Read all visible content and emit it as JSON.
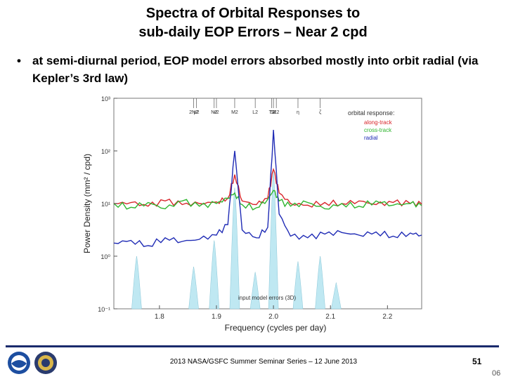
{
  "slide": {
    "title_line1": "Spectra of Orbital Responses to",
    "title_line2": "sub-daily EOP Errors – Near 2 cpd",
    "bullet_symbol": "•",
    "bullet_text": "at semi-diurnal period, EOP model errors absorbed mostly into orbit radial (via Kepler’s 3rd law)",
    "footer": "2013 NASA/GSFC Summer Seminar Series – 12 June 2013",
    "page_number": "51",
    "page_sub": "06"
  },
  "chart_data": {
    "type": "line",
    "ylabel": "Power Density (mm² / cpd)",
    "xlabel": "Frequency (cycles per day)",
    "xlim": [
      1.72,
      2.26
    ],
    "ylim_log10": [
      -1,
      3
    ],
    "x_ticks": [
      1.8,
      1.9,
      2.0,
      2.1,
      2.2
    ],
    "x_tick_labels": [
      "1.8",
      "1.9",
      "2.0",
      "2.1",
      "2.2"
    ],
    "y_ticks_log10": [
      -1,
      0,
      1,
      2,
      3
    ],
    "y_tick_labels": [
      "10⁻¹",
      "10⁰",
      "10¹",
      "10²",
      "10³"
    ],
    "tide_lines": [
      {
        "label": "2N2",
        "x": 1.86
      },
      {
        "label": "μ2",
        "x": 1.865
      },
      {
        "label": "N2",
        "x": 1.896
      },
      {
        "label": "ν2",
        "x": 1.9
      },
      {
        "label": "M2",
        "x": 1.932
      },
      {
        "label": "L2",
        "x": 1.968
      },
      {
        "label": "T2",
        "x": 1.997
      },
      {
        "label": "S2",
        "x": 2.0
      },
      {
        "label": "K2",
        "x": 2.005
      },
      {
        "label": "η",
        "x": 2.043
      },
      {
        "label": "ζ",
        "x": 2.082
      }
    ],
    "legend_title": "orbital response:",
    "legend_position": "top-right",
    "series": [
      {
        "name": "along-track",
        "color": "#d8252b",
        "x": [
          1.72,
          1.75,
          1.78,
          1.81,
          1.84,
          1.87,
          1.9,
          1.92,
          1.932,
          1.945,
          1.97,
          1.99,
          2.0,
          2.01,
          2.03,
          2.06,
          2.09,
          2.12,
          2.15,
          2.18,
          2.21,
          2.24,
          2.26
        ],
        "y": [
          1.0,
          1.02,
          0.95,
          1.05,
          0.98,
          1.0,
          1.03,
          1.1,
          1.55,
          1.05,
          0.98,
          1.1,
          1.65,
          1.2,
          1.0,
          0.97,
          1.02,
          1.0,
          1.05,
          0.98,
          1.02,
          1.0,
          0.99
        ]
      },
      {
        "name": "cross-track",
        "color": "#2fb52f",
        "x": [
          1.72,
          1.75,
          1.78,
          1.81,
          1.84,
          1.87,
          1.9,
          1.92,
          1.932,
          1.945,
          1.97,
          1.99,
          2.0,
          2.01,
          2.03,
          2.06,
          2.09,
          2.12,
          2.15,
          2.18,
          2.21,
          2.24,
          2.26
        ],
        "y": [
          1.0,
          0.93,
          1.02,
          0.9,
          1.05,
          0.95,
          1.0,
          1.1,
          1.2,
          0.98,
          0.92,
          1.08,
          1.25,
          1.05,
          0.95,
          1.02,
          0.9,
          1.0,
          0.95,
          1.05,
          0.97,
          1.0,
          0.96
        ]
      },
      {
        "name": "radial",
        "color": "#1f2bb5",
        "x": [
          1.72,
          1.75,
          1.78,
          1.81,
          1.84,
          1.87,
          1.9,
          1.92,
          1.932,
          1.945,
          1.97,
          1.99,
          2.0,
          2.01,
          2.03,
          2.06,
          2.09,
          2.12,
          2.15,
          2.18,
          2.21,
          2.24,
          2.26
        ],
        "y": [
          0.25,
          0.3,
          0.2,
          0.35,
          0.28,
          0.32,
          0.4,
          0.6,
          2.0,
          0.5,
          0.35,
          0.55,
          2.4,
          0.8,
          0.38,
          0.35,
          0.42,
          0.45,
          0.4,
          0.46,
          0.38,
          0.44,
          0.4
        ]
      }
    ],
    "background_fill": {
      "name": "input model errors (3D)",
      "color": "#bfe8f2",
      "peaks": [
        {
          "x": 1.76,
          "y": 0.0
        },
        {
          "x": 1.86,
          "y": -0.2
        },
        {
          "x": 1.896,
          "y": 0.3
        },
        {
          "x": 1.932,
          "y": 1.3
        },
        {
          "x": 1.968,
          "y": -0.3
        },
        {
          "x": 2.0,
          "y": 1.6
        },
        {
          "x": 2.043,
          "y": -0.1
        },
        {
          "x": 2.082,
          "y": 0.0
        },
        {
          "x": 2.11,
          "y": -0.5
        }
      ]
    }
  }
}
